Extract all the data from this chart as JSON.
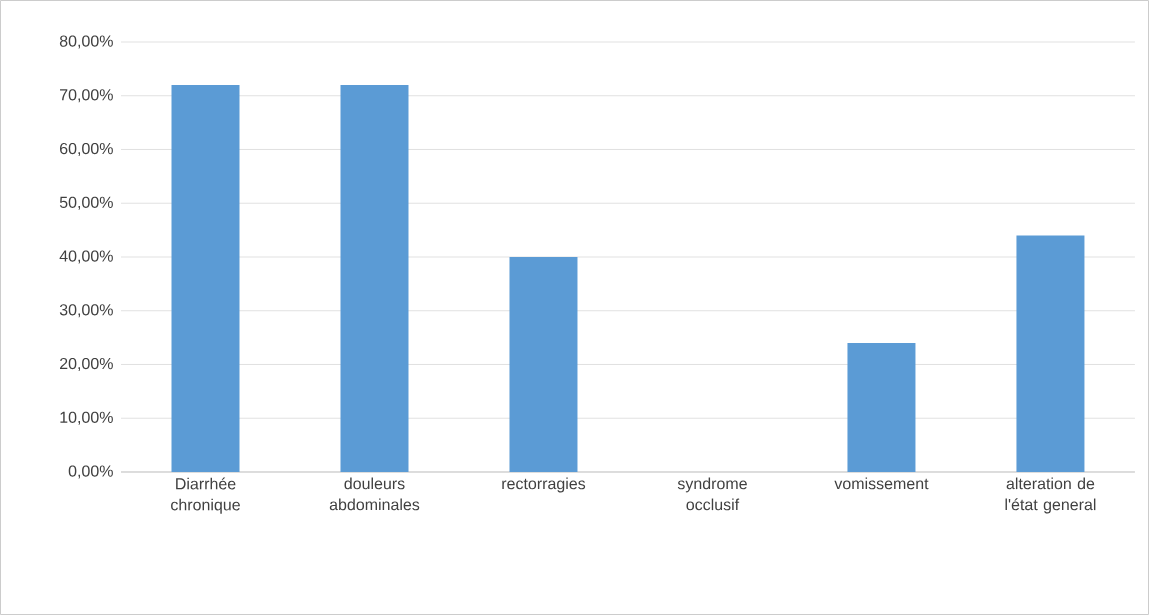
{
  "chart_data": {
    "type": "bar",
    "categories": [
      "Diarrhée chronique",
      "douleurs abdominales",
      "rectorragies",
      "syndrome occlusif",
      "vomissement",
      "alteration de l'état general"
    ],
    "values": [
      72,
      72,
      40,
      0,
      24,
      44
    ],
    "color": "#5b9bd5",
    "ylim": [
      0,
      80
    ],
    "yticks": [
      {
        "value": 0,
        "label": "0,00%"
      },
      {
        "value": 10,
        "label": "10,00%"
      },
      {
        "value": 20,
        "label": "20,00%"
      },
      {
        "value": 30,
        "label": "30,00%"
      },
      {
        "value": 40,
        "label": "40,00%"
      },
      {
        "value": 50,
        "label": "50,00%"
      },
      {
        "value": 60,
        "label": "60,00%"
      },
      {
        "value": 70,
        "label": "70,00%"
      },
      {
        "value": 80,
        "label": "80,00%"
      }
    ],
    "grid": "y"
  }
}
